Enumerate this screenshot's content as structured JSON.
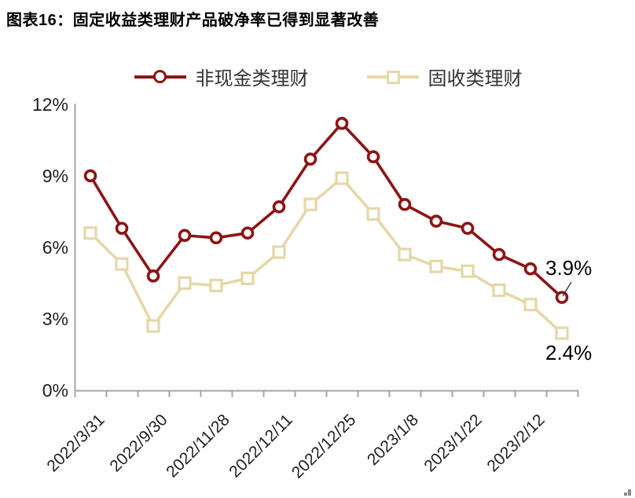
{
  "title": "图表16：固定收益类理财产品破净率已得到显著改善",
  "colors": {
    "series1": "#8B1515",
    "series2": "#E6D7A8",
    "axis": "#A6A6A6",
    "label_text": "#1F1F1F"
  },
  "chart_data": {
    "type": "line",
    "title": "图表16：固定收益类理财产品破净率已得到显著改善",
    "n_points": 16,
    "x_tick_labels": [
      "2022/3/31",
      "2022/9/30",
      "2022/11/28",
      "2022/12/11",
      "2022/12/25",
      "2023/1/8",
      "2023/1/22",
      "2023/2/12"
    ],
    "x_label_point_indices": [
      0,
      2,
      4,
      6,
      8,
      10,
      12,
      14
    ],
    "series": [
      {
        "name": "非现金类理财",
        "marker": "circle",
        "color": "#8B1515",
        "values": [
          9.0,
          6.8,
          4.8,
          6.5,
          6.4,
          6.6,
          7.7,
          9.7,
          11.2,
          9.8,
          7.8,
          7.1,
          6.8,
          5.7,
          5.1,
          3.9
        ],
        "end_label": "3.9%"
      },
      {
        "name": "固收类理财",
        "marker": "square",
        "color": "#E6D7A8",
        "values": [
          6.6,
          5.3,
          2.7,
          4.5,
          4.4,
          4.7,
          5.8,
          7.8,
          8.9,
          7.4,
          5.7,
          5.2,
          5.0,
          4.2,
          3.6,
          2.4
        ],
        "end_label": "2.4%"
      }
    ],
    "ylim": [
      0,
      12
    ],
    "yticks": [
      "0%",
      "3%",
      "6%",
      "9%",
      "12%"
    ],
    "ytick_values": [
      0,
      3,
      6,
      9,
      12
    ],
    "grid": false,
    "legend_position": "top"
  }
}
